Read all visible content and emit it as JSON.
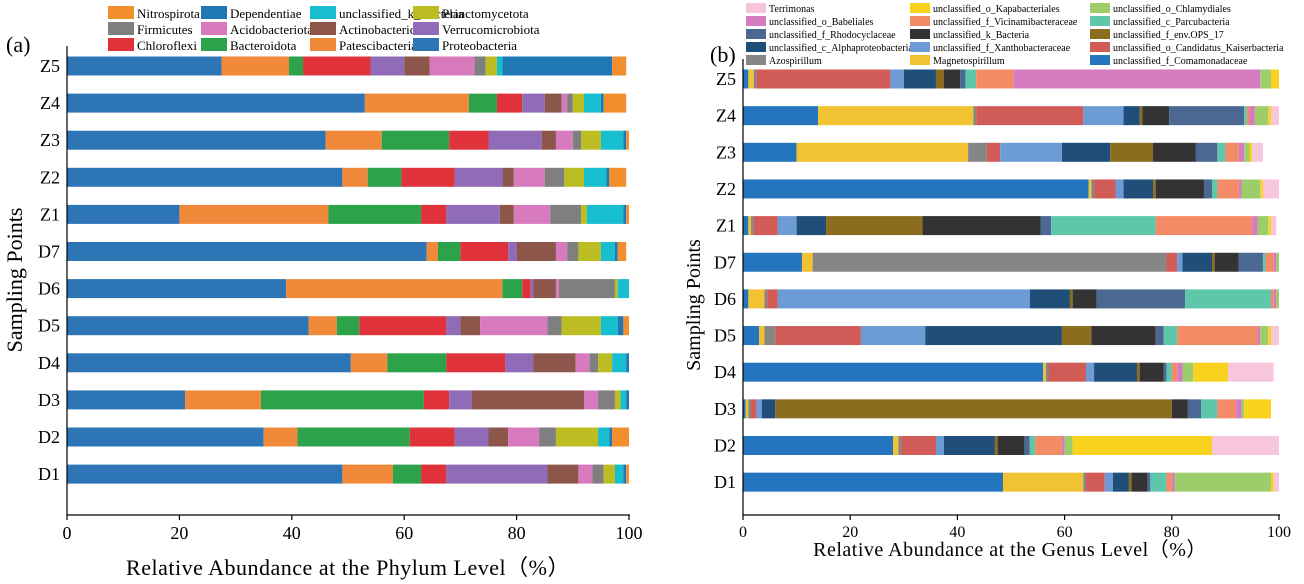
{
  "chart_data": [
    {
      "panel": "(a)",
      "type": "bar",
      "orientation": "horizontal",
      "stacked": true,
      "xlabel": "Relative Abundance at the Phylum Level（%）",
      "ylabel": "Sampling Points",
      "xlim": [
        0,
        100
      ],
      "xticks": [
        0,
        20,
        40,
        60,
        80,
        100
      ],
      "legend_position": "top",
      "categories": [
        "Z5",
        "Z4",
        "Z3",
        "Z2",
        "Z1",
        "D7",
        "D6",
        "D5",
        "D4",
        "D3",
        "D2",
        "D1"
      ],
      "legend_order": [
        "Nitrospirota",
        "Dependentiae",
        "unclassified_k_Bacteria",
        "Planctomycetota",
        "Firmicutes",
        "Acidobacteriota",
        "Actinobacteriota",
        "Verrucomicrobiota",
        "Chloroflexi",
        "Bacteroidota",
        "Patescibacteria",
        "Proteobacteria"
      ],
      "series": [
        {
          "name": "Proteobacteria",
          "color": "#2e75b6",
          "values": [
            27.5,
            53,
            46,
            49,
            20,
            64,
            39,
            43,
            50.5,
            21,
            35,
            49
          ]
        },
        {
          "name": "Patescibacteria",
          "color": "#f08a3a",
          "values": [
            12,
            18.5,
            10,
            4.5,
            26.5,
            2,
            38.5,
            5,
            6.5,
            13.5,
            6,
            9
          ]
        },
        {
          "name": "Bacteroidota",
          "color": "#2ca24a",
          "values": [
            2.5,
            5,
            12,
            6,
            16.5,
            4,
            3.5,
            4,
            10.5,
            29,
            20,
            5
          ]
        },
        {
          "name": "Chloroflexi",
          "color": "#e0323a",
          "values": [
            12,
            4.5,
            7,
            9.5,
            4.5,
            8.5,
            1.5,
            15.5,
            10.5,
            4.5,
            8,
            4.5
          ]
        },
        {
          "name": "Verrucomicrobiota",
          "color": "#8f6bb8",
          "values": [
            6,
            4,
            9.5,
            8.5,
            9.5,
            1.5,
            0.5,
            2.5,
            5,
            4,
            6,
            18
          ]
        },
        {
          "name": "Actinobacteriota",
          "color": "#8c564b",
          "values": [
            4.5,
            3,
            2.5,
            2,
            2.5,
            7,
            4,
            3.5,
            7.5,
            20,
            3.5,
            5.5
          ]
        },
        {
          "name": "Acidobacteriota",
          "color": "#d77bbe",
          "values": [
            8,
            1,
            3,
            5.5,
            6.5,
            2,
            0.5,
            12,
            2.5,
            2.5,
            5.5,
            2.5
          ]
        },
        {
          "name": "Firmicutes",
          "color": "#7f7f7f",
          "values": [
            2,
            1,
            1.5,
            3.5,
            5.5,
            2,
            10,
            2.5,
            1.5,
            3,
            3,
            2
          ]
        },
        {
          "name": "Planctomycetota",
          "color": "#bcbd22",
          "values": [
            2,
            2,
            3.5,
            3.5,
            1,
            4,
            0.5,
            7,
            2.5,
            1,
            7.5,
            2
          ]
        },
        {
          "name": "unclassified_k_Bacteria",
          "color": "#17becf",
          "values": [
            1,
            3,
            4,
            4,
            6.5,
            2.5,
            2,
            3,
            2.5,
            1,
            2,
            1.5
          ]
        },
        {
          "name": "Dependentiae",
          "color": "#1f77b4",
          "values": [
            19.5,
            0.5,
            0.5,
            0.5,
            0.5,
            0.5,
            0.5,
            1,
            0.5,
            1,
            0.5,
            0.5
          ]
        },
        {
          "name": "Nitrospirota",
          "color": "#f28e2b",
          "values": [
            2.5,
            4,
            0.5,
            3,
            0.5,
            1.5,
            0.5,
            1.5,
            0.5,
            0.5,
            3,
            0.5
          ]
        }
      ]
    },
    {
      "panel": "(b)",
      "type": "bar",
      "orientation": "horizontal",
      "stacked": true,
      "xlabel": "Relative Abundance at the Genus Level（%）",
      "ylabel": "Sampling Points",
      "xlim": [
        0,
        100
      ],
      "xticks": [
        0,
        20,
        40,
        60,
        80,
        100
      ],
      "legend_position": "top",
      "categories": [
        "Z5",
        "Z4",
        "Z3",
        "Z2",
        "Z1",
        "D7",
        "D6",
        "D5",
        "D4",
        "D3",
        "D2",
        "D1"
      ],
      "legend_order": [
        "Terrimonas",
        "unclassified_o_Kapabacteriales",
        "unclassified_o_Chlamydiales",
        "unclassified_o_Babeliales",
        "unclassified_f_Vicinamibacteraceae",
        "unclassified_c_Parcubacteria",
        "unclassified_f_Rhodocyclaceae",
        "unclassified_k_Bacteria",
        "unclassified_f_env.OPS_17",
        "unclassified_c_Alphaproteobacteria",
        "unclassified_f_Xanthobacteraceae",
        "unclassified_o_Candidatus_Kaiserbacteria",
        "Azospirillum",
        "Magnetospirillum",
        "unclassified_f_Comamonadaceae"
      ],
      "series": [
        {
          "name": "unclassified_f_Comamonadaceae",
          "color": "#2475bd",
          "values": [
            1,
            14,
            10,
            64.5,
            1,
            11,
            1,
            3,
            56,
            0.5,
            28,
            48.5
          ]
        },
        {
          "name": "Magnetospirillum",
          "color": "#f1c232",
          "values": [
            1,
            29,
            32,
            0.5,
            0.5,
            2,
            3,
            1,
            0.5,
            0.5,
            1,
            15
          ]
        },
        {
          "name": "Azospirillum",
          "color": "#868686",
          "values": [
            0.5,
            0.5,
            3.5,
            0.5,
            0.5,
            66,
            0.5,
            2,
            0.5,
            0.5,
            0.5,
            0.5
          ]
        },
        {
          "name": "unclassified_o_Candidatus_Kaiserbacteria",
          "color": "#d15b57",
          "values": [
            25,
            20,
            2.5,
            4,
            4.5,
            2,
            2,
            16,
            7,
            1,
            6.5,
            3.5
          ]
        },
        {
          "name": "unclassified_f_Xanthobacteraceae",
          "color": "#6c9bd6",
          "values": [
            2.5,
            7.5,
            11.5,
            1.5,
            3.5,
            1,
            47,
            12,
            1.5,
            1,
            1.5,
            1.5
          ]
        },
        {
          "name": "unclassified_c_Alphaproteobacteria",
          "color": "#1f4e79",
          "values": [
            6,
            3,
            9,
            5.5,
            5.5,
            5.5,
            7.5,
            25.5,
            8,
            2.5,
            9.5,
            3
          ]
        },
        {
          "name": "unclassified_f_env.OPS_17",
          "color": "#8c6d1f",
          "values": [
            1.5,
            0.5,
            8,
            0.5,
            18,
            0.5,
            0.5,
            5.5,
            0.5,
            74,
            0.5,
            0.5
          ]
        },
        {
          "name": "unclassified_k_Bacteria",
          "color": "#333333",
          "values": [
            3,
            5,
            8,
            9,
            22,
            4.5,
            4.5,
            12,
            4.5,
            3,
            5,
            3
          ]
        },
        {
          "name": "unclassified_f_Rhodocyclaceae",
          "color": "#4a6891",
          "values": [
            1,
            14,
            4,
            1.5,
            2,
            4.5,
            16.5,
            1.5,
            0.5,
            2.5,
            1,
            0.5
          ]
        },
        {
          "name": "unclassified_c_Parcubacteria",
          "color": "#5fc7a9",
          "values": [
            2,
            0.5,
            1.5,
            1,
            19.5,
            0.5,
            16,
            2.5,
            1,
            3,
            1,
            3
          ]
        },
        {
          "name": "unclassified_f_Vicinamibacteraceae",
          "color": "#f38b67",
          "values": [
            7,
            0.5,
            2.5,
            4,
            18,
            1.5,
            0.5,
            15,
            1,
            3.5,
            5,
            1
          ]
        },
        {
          "name": "unclassified_o_Babeliales",
          "color": "#d77bc0",
          "values": [
            46,
            1,
            1,
            0.5,
            1,
            0.5,
            0.5,
            0.5,
            1,
            1,
            0.5,
            0.5
          ]
        },
        {
          "name": "unclassified_o_Chlamydiales",
          "color": "#9ccd6a",
          "values": [
            2,
            2.5,
            1,
            3.5,
            2,
            0.5,
            0.5,
            1.5,
            2,
            0.5,
            1.5,
            18
          ]
        },
        {
          "name": "unclassified_o_Kapabacteriales",
          "color": "#f9d11f",
          "values": [
            1.5,
            0.5,
            0.5,
            0.5,
            0.5,
            0.5,
            0.5,
            0.5,
            6.5,
            5,
            26,
            0.5
          ]
        },
        {
          "name": "Terrimonas",
          "color": "#f7c6dd",
          "values": [
            0,
            2.5,
            2,
            3.5,
            1,
            0.5,
            1,
            1.5,
            8.5,
            0,
            13,
            3.5
          ]
        }
      ]
    }
  ],
  "panels": {
    "a": {
      "label": "(a)"
    },
    "b": {
      "label": "(b)"
    }
  }
}
